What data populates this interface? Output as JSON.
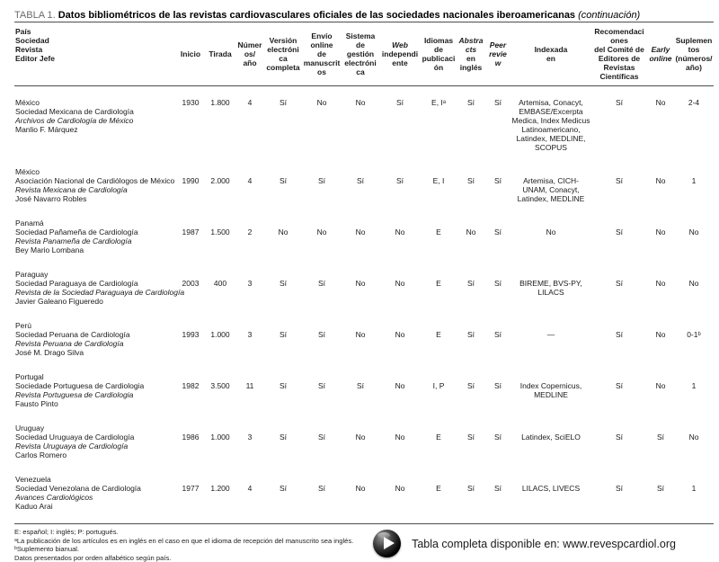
{
  "title": {
    "label": "TABLA 1.",
    "text": "Datos bibliométricos de las revistas cardiovasculares oficiales de las sociedades nacionales iberoamericanas",
    "suffix": "(continuación)"
  },
  "table": {
    "columns": [
      {
        "id": "entity",
        "label_lines": [
          "País",
          "Sociedad",
          "Revista",
          "Editor Jefe"
        ],
        "italic_lines": []
      },
      {
        "id": "inicio",
        "label_lines": [
          "Inicio"
        ],
        "italic_lines": []
      },
      {
        "id": "tirada",
        "label_lines": [
          "Tirada"
        ],
        "italic_lines": []
      },
      {
        "id": "numeros",
        "label_lines": [
          "Números/",
          "año"
        ],
        "italic_lines": []
      },
      {
        "id": "version",
        "label_lines": [
          "Versión",
          "electrónica",
          "completa"
        ],
        "italic_lines": []
      },
      {
        "id": "envio",
        "label_lines": [
          "Envío",
          "online",
          "de",
          "manuscritos"
        ],
        "italic_lines": []
      },
      {
        "id": "sistema",
        "label_lines": [
          "Sistema",
          "de",
          "gestión",
          "electrónica"
        ],
        "italic_lines": []
      },
      {
        "id": "web",
        "label_lines": [
          "Web",
          "independiente"
        ],
        "italic_lines": [
          0
        ]
      },
      {
        "id": "idiomas",
        "label_lines": [
          "Idiomas",
          "de",
          "publicación"
        ],
        "italic_lines": []
      },
      {
        "id": "abstracts",
        "label_lines": [
          "Abstracts",
          "en",
          "inglés"
        ],
        "italic_lines": [
          0
        ]
      },
      {
        "id": "peer",
        "label_lines": [
          "Peer",
          "review"
        ],
        "italic_lines": [
          0,
          1
        ]
      },
      {
        "id": "indexada",
        "label_lines": [
          "Indexada",
          "en"
        ],
        "italic_lines": []
      },
      {
        "id": "recom",
        "label_lines": [
          "Recomendaciones",
          "del Comité de",
          "Editores de",
          "Revistas Científicas"
        ],
        "italic_lines": []
      },
      {
        "id": "early",
        "label_lines": [
          "Early",
          "online"
        ],
        "italic_lines": [
          0,
          1
        ]
      },
      {
        "id": "suplementos",
        "label_lines": [
          "Suplementos",
          "(números/año)"
        ],
        "italic_lines": []
      }
    ],
    "rows": [
      {
        "country": "México",
        "society": "Sociedad Mexicana de Cardiología",
        "journal": "Archivos de Cardiología de México",
        "editor": "Manlio F. Márquez",
        "inicio": "1930",
        "tirada": "1.800",
        "numeros": "4",
        "version": "Sí",
        "envio": "No",
        "sistema": "No",
        "web": "Sí",
        "idiomas": "E, Iᵃ",
        "abstracts": "Sí",
        "peer": "Sí",
        "indexada": "Artemisa, Conacyt, EMBASE/Excerpta Medica, Index Medicus Latinoamericano, Latindex, MEDLINE, SCOPUS",
        "recom": "Sí",
        "early": "No",
        "suplementos": "2-4"
      },
      {
        "country": "México",
        "society": "Asociación Nacional de Cardiólogos de México",
        "journal": "Revista Mexicana de Cardiología",
        "editor": "José Navarro Robles",
        "inicio": "1990",
        "tirada": "2.000",
        "numeros": "4",
        "version": "Sí",
        "envio": "Sí",
        "sistema": "Sí",
        "web": "Sí",
        "idiomas": "E, I",
        "abstracts": "Sí",
        "peer": "Sí",
        "indexada": "Artemisa, CICH-UNAM, Conacyt, Latindex, MEDLINE",
        "recom": "Sí",
        "early": "No",
        "suplementos": "1"
      },
      {
        "country": "Panamá",
        "society": "Sociedad Pañameña de Cardiología",
        "journal": "Revista Panameña de Cardiología",
        "editor": "Bey Mario Lombana",
        "inicio": "1987",
        "tirada": "1.500",
        "numeros": "2",
        "version": "No",
        "envio": "No",
        "sistema": "No",
        "web": "No",
        "idiomas": "E",
        "abstracts": "No",
        "peer": "Sí",
        "indexada": "No",
        "recom": "Sí",
        "early": "No",
        "suplementos": "No"
      },
      {
        "country": "Paraguay",
        "society": "Sociedad Paraguaya de Cardiología",
        "journal": "Revista de la Sociedad Paraguaya de Cardiología",
        "editor": "Javier Galeano Figueredo",
        "inicio": "2003",
        "tirada": "400",
        "numeros": "3",
        "version": "Sí",
        "envio": "Sí",
        "sistema": "No",
        "web": "No",
        "idiomas": "E",
        "abstracts": "Sí",
        "peer": "Sí",
        "indexada": "BIREME, BVS-PY, LILACS",
        "recom": "Sí",
        "early": "No",
        "suplementos": "No"
      },
      {
        "country": "Perú",
        "society": "Sociedad Peruana de Cardiología",
        "journal": "Revista Peruana de Cardiología",
        "editor": "José M. Drago Silva",
        "inicio": "1993",
        "tirada": "1.000",
        "numeros": "3",
        "version": "Sí",
        "envio": "Sí",
        "sistema": "No",
        "web": "No",
        "idiomas": "E",
        "abstracts": "Sí",
        "peer": "Sí",
        "indexada": "—",
        "recom": "Sí",
        "early": "No",
        "suplementos": "0-1ᵇ"
      },
      {
        "country": "Portugal",
        "society": "Sociedade Portuguesa de Cardiologia",
        "journal": "Revista Portuguesa de Cardiologia",
        "editor": "Fausto Pinto",
        "inicio": "1982",
        "tirada": "3.500",
        "numeros": "11",
        "version": "Sí",
        "envio": "Sí",
        "sistema": "Sí",
        "web": "No",
        "idiomas": "I, P",
        "abstracts": "Sí",
        "peer": "Sí",
        "indexada": "Index Copernicus, MEDLINE",
        "recom": "Sí",
        "early": "No",
        "suplementos": "1"
      },
      {
        "country": "Uruguay",
        "society": "Sociedad Uruguaya de Cardiología",
        "journal": "Revista Uruguaya de Cardiología",
        "editor": "Carlos Romero",
        "inicio": "1986",
        "tirada": "1.000",
        "numeros": "3",
        "version": "Sí",
        "envio": "Sí",
        "sistema": "No",
        "web": "No",
        "idiomas": "E",
        "abstracts": "Sí",
        "peer": "Sí",
        "indexada": "Latindex, SciELO",
        "recom": "Sí",
        "early": "Sí",
        "suplementos": "No"
      },
      {
        "country": "Venezuela",
        "society": "Sociedad Venezolana de Cardiología",
        "journal": "Avances Cardiológicos",
        "editor": "Kaduo Arai",
        "inicio": "1977",
        "tirada": "1.200",
        "numeros": "4",
        "version": "Sí",
        "envio": "Sí",
        "sistema": "No",
        "web": "No",
        "idiomas": "E",
        "abstracts": "Sí",
        "peer": "Sí",
        "indexada": "LILACS, LIVECS",
        "recom": "Sí",
        "early": "Sí",
        "suplementos": "1"
      }
    ]
  },
  "footnotes": [
    "E: español; I: inglés; P: portugués.",
    "ᵃLa publicación de los artículos es en inglés en el caso en que el idioma de recepción del manuscrito sea inglés.",
    "ᵇSuplemento bianual.",
    "Datos presentados por orden alfabético según país."
  ],
  "footer": {
    "text": "Tabla completa disponible en: www.revespcardiol.org"
  }
}
